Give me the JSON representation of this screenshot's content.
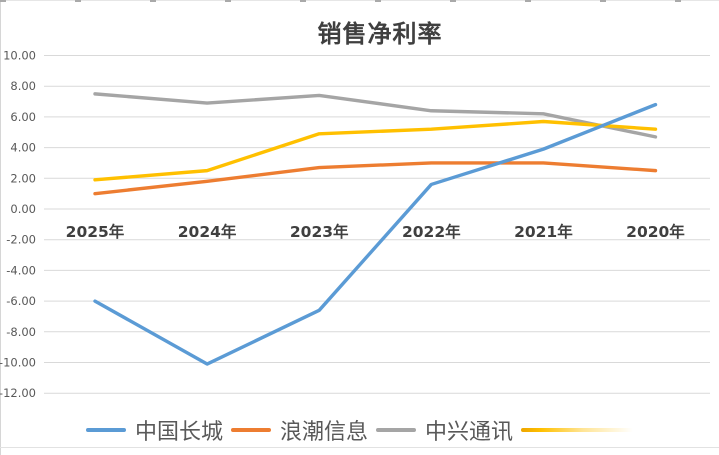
{
  "chart_data": {
    "type": "line",
    "title": "销售净利率",
    "categories": [
      "2025年",
      "2024年",
      "2023年",
      "2022年",
      "2021年",
      "2020年"
    ],
    "series": [
      {
        "name": "中国长城",
        "color": "#5B9BD5",
        "values": [
          -6.0,
          -10.1,
          -6.6,
          1.6,
          3.9,
          6.8
        ],
        "legend_style": "solid"
      },
      {
        "name": "浪潮信息",
        "color": "#ED7D31",
        "values": [
          1.0,
          1.8,
          2.7,
          3.0,
          3.0,
          2.5
        ],
        "legend_style": "solid"
      },
      {
        "name": "中兴通讯",
        "color": "#A5A5A5",
        "values": [
          7.5,
          6.9,
          7.4,
          6.4,
          6.2,
          4.7
        ],
        "legend_style": "solid"
      },
      {
        "name": "",
        "color": "#FFC000",
        "values": [
          1.9,
          2.5,
          4.9,
          5.2,
          5.7,
          5.2
        ],
        "legend_style": "fading"
      }
    ],
    "y_axis": {
      "min": -12,
      "max": 10,
      "step": 2,
      "tick_labels": [
        "10.00",
        "8.00",
        "6.00",
        "4.00",
        "2.00",
        "0.00",
        "-2.00",
        "-4.00",
        "-6.00",
        "-8.00",
        "-10.00",
        "-12.00"
      ]
    },
    "xlabel": "",
    "ylabel": "",
    "ylim": [
      -12,
      10
    ],
    "grid": true,
    "legend_position": "bottom",
    "colors": {
      "gridline": "#D9D9D9",
      "y_tick_text": "#595959",
      "x_label_text": "#3F3F3F",
      "title_text": "#3F3F3F",
      "legend_text": "#595959"
    }
  }
}
